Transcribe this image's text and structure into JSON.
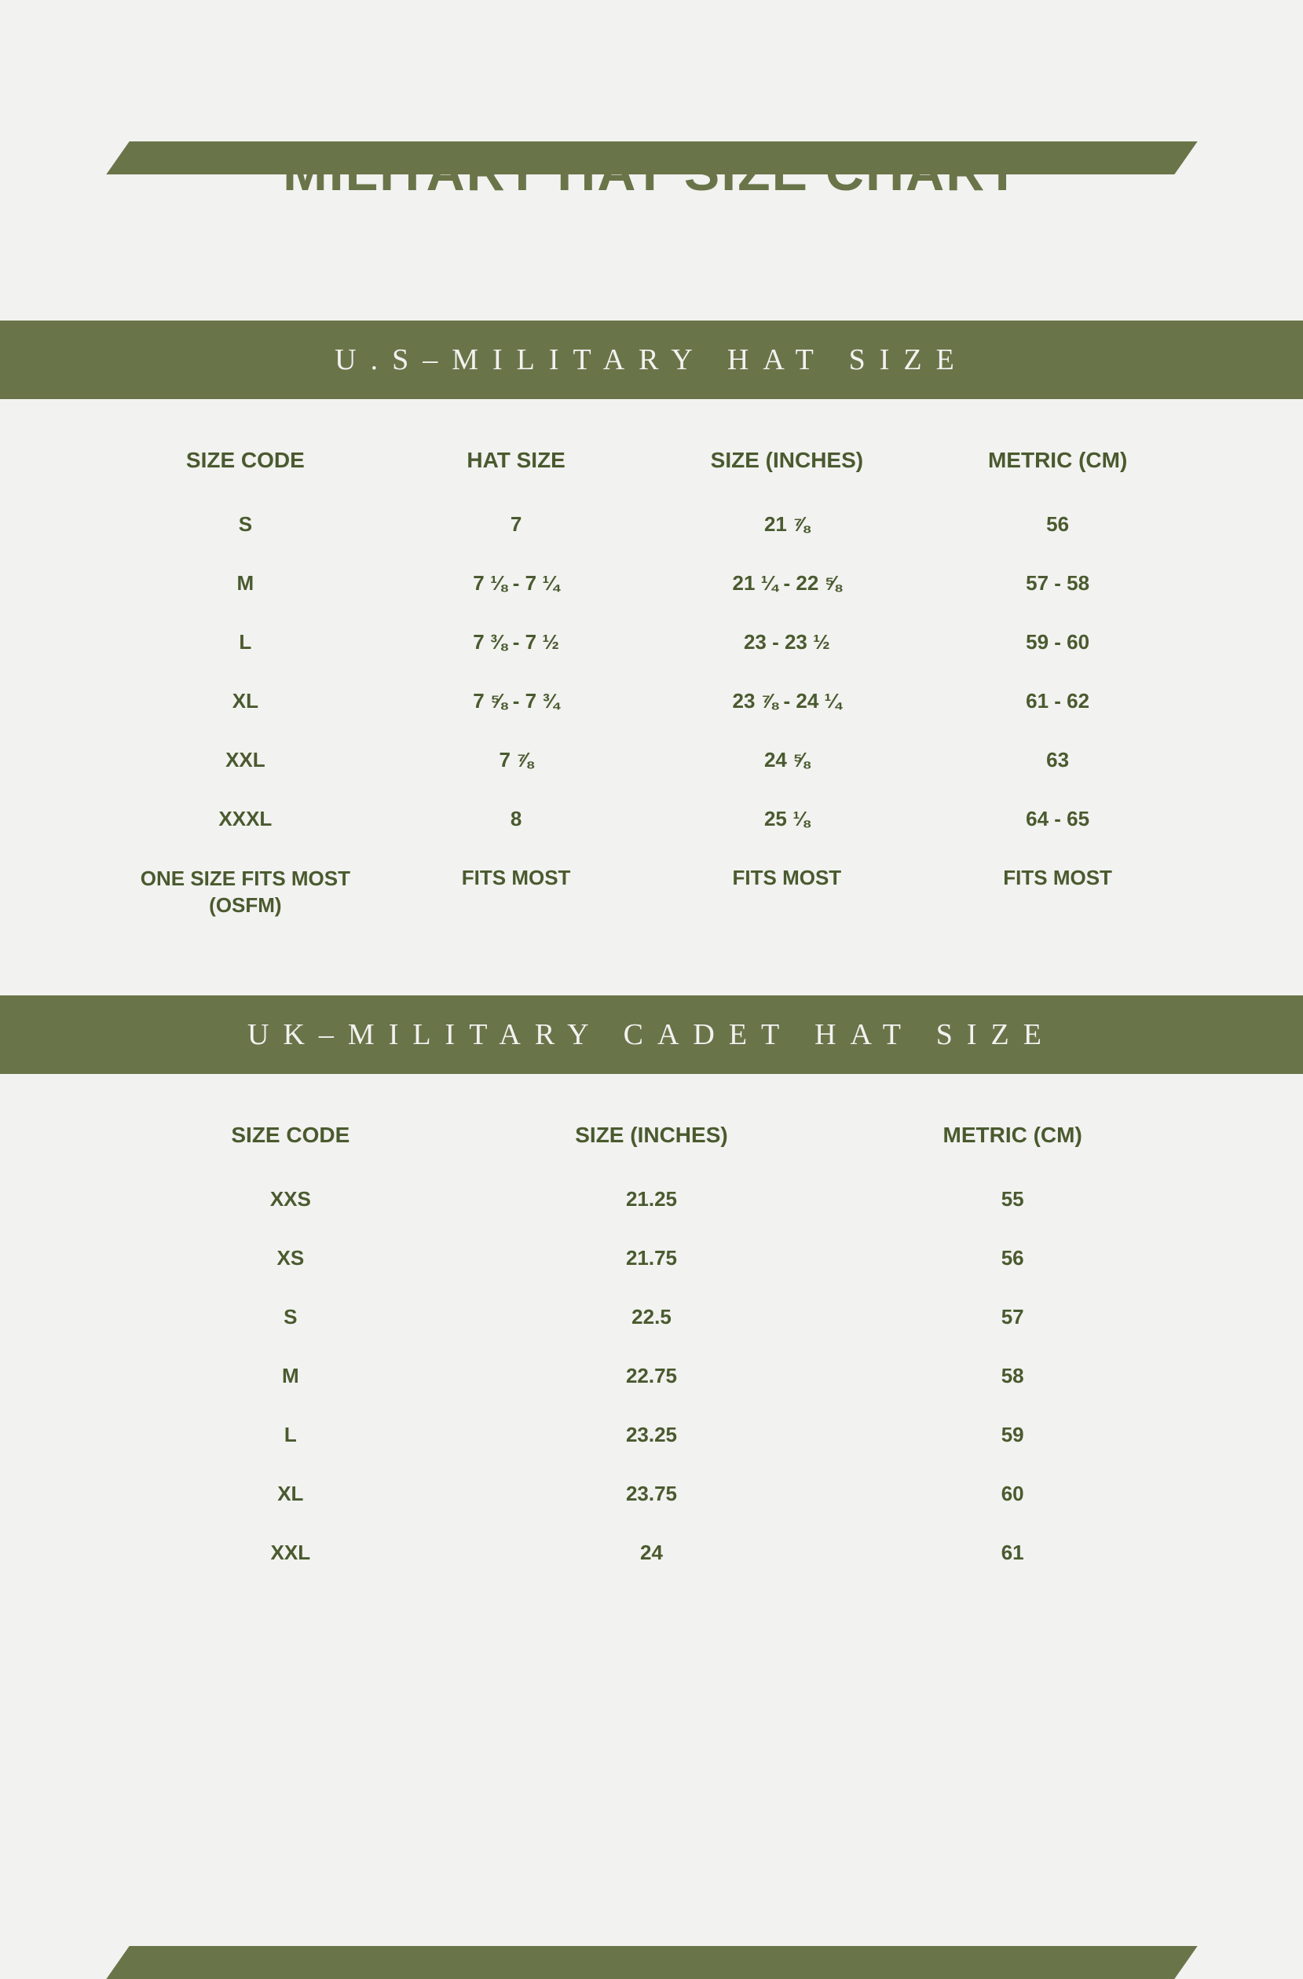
{
  "colors": {
    "olive": "#6a7449",
    "dark_olive": "#4a5a2f",
    "background": "#f2f2f0"
  },
  "title": "MILITARY HAT SIZE CHART",
  "us_section": {
    "heading": "U.S–MILITARY HAT SIZE",
    "columns": [
      "SIZE CODE",
      "HAT SIZE",
      "SIZE (INCHES)",
      "METRIC (CM)"
    ],
    "rows": [
      {
        "code": "S",
        "hat": "7",
        "inches": "21 ⅞",
        "cm": "56"
      },
      {
        "code": "M",
        "hat": "7 ⅛ - 7 ¼",
        "inches": "21 ¼ - 22 ⅝",
        "cm": "57 - 58"
      },
      {
        "code": "L",
        "hat": "7 ⅜ - 7 ½",
        "inches": "23 - 23 ½",
        "cm": "59 - 60"
      },
      {
        "code": "XL",
        "hat": "7 ⅝ - 7 ¾",
        "inches": "23 ⅞ - 24 ¼",
        "cm": "61 - 62"
      },
      {
        "code": "XXL",
        "hat": "7 ⅞",
        "inches": "24 ⅝",
        "cm": "63"
      },
      {
        "code": "XXXL",
        "hat": "8",
        "inches": "25 ⅛",
        "cm": "64 - 65"
      },
      {
        "code": "ONE SIZE FITS MOST (OSFM)",
        "hat": "FITS MOST",
        "inches": "FITS MOST",
        "cm": "FITS MOST"
      }
    ]
  },
  "uk_section": {
    "heading": "UK–MILITARY CADET HAT SIZE",
    "columns": [
      "SIZE CODE",
      "SIZE (INCHES)",
      "METRIC (CM)"
    ],
    "rows": [
      {
        "code": "XXS",
        "inches": "21.25",
        "cm": "55"
      },
      {
        "code": "XS",
        "inches": "21.75",
        "cm": "56"
      },
      {
        "code": "S",
        "inches": "22.5",
        "cm": "57"
      },
      {
        "code": "M",
        "inches": "22.75",
        "cm": "58"
      },
      {
        "code": "L",
        "inches": "23.25",
        "cm": "59"
      },
      {
        "code": "XL",
        "inches": "23.75",
        "cm": "60"
      },
      {
        "code": "XXL",
        "inches": "24",
        "cm": "61"
      }
    ]
  }
}
